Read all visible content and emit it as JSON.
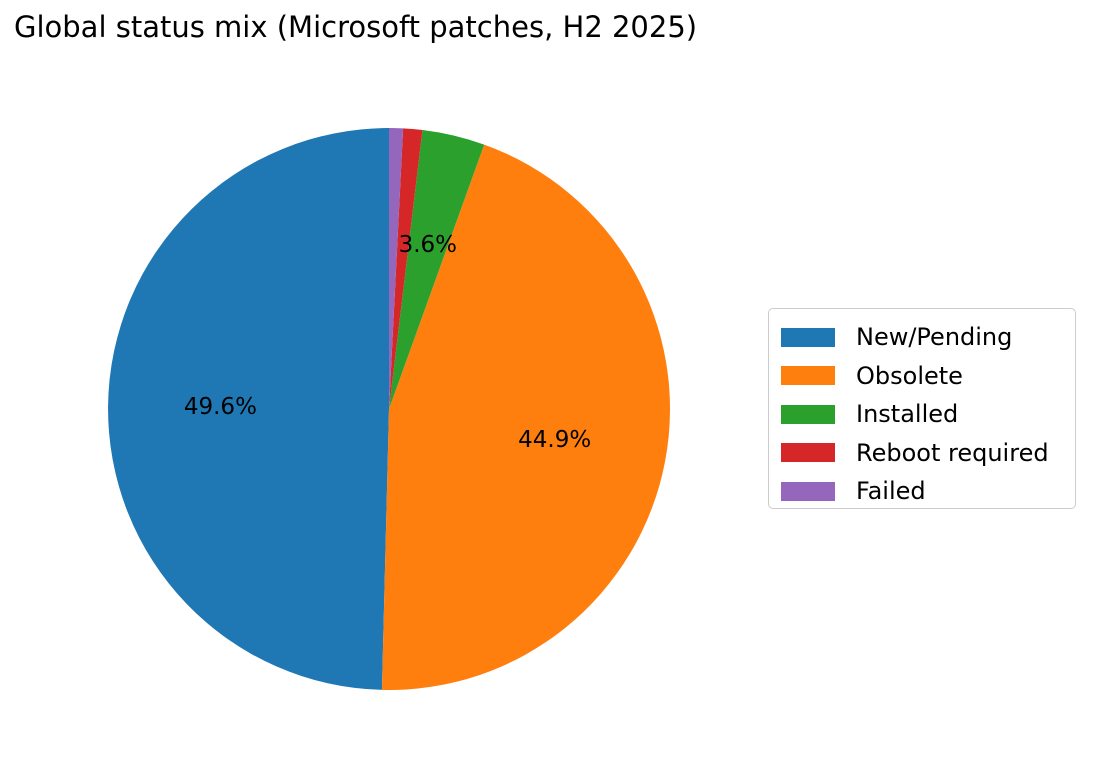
{
  "chart_data": {
    "type": "pie",
    "title": "Global status mix (Microsoft patches, H2 2025)",
    "labels": [
      "New/Pending",
      "Obsolete",
      "Installed",
      "Reboot required",
      "Failed"
    ],
    "values": [
      49.6,
      44.9,
      3.6,
      1.1,
      0.8
    ],
    "display_labels": [
      "49.6%",
      "44.9%",
      "3.6%",
      "",
      ""
    ],
    "colors": [
      "#1f77b4",
      "#ff7f0e",
      "#2ca02c",
      "#d62728",
      "#9467bd"
    ],
    "start_angle_deg": 90,
    "direction": "clockwise",
    "legend_position": "right"
  }
}
